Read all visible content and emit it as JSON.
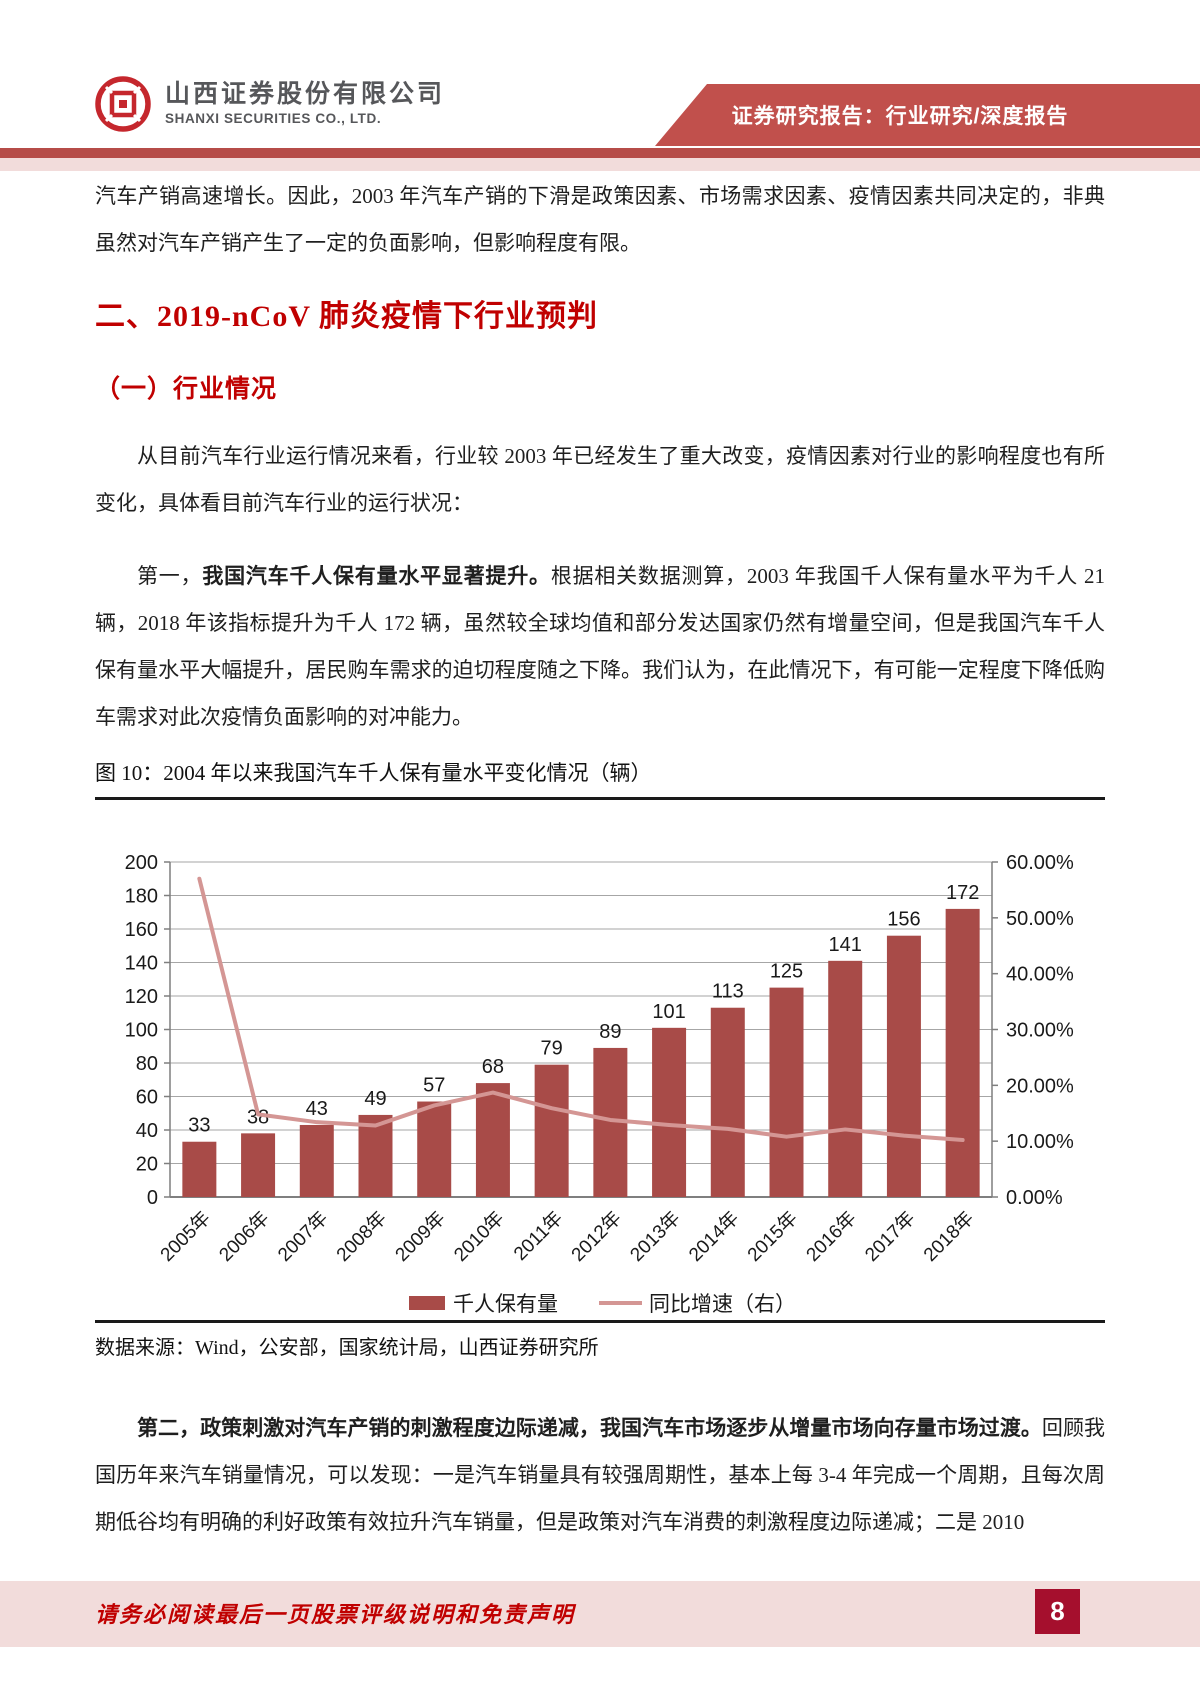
{
  "header": {
    "company_name_cn": "山西证券股份有限公司",
    "company_name_en": "SHANXI SECURITIES CO., LTD.",
    "banner": "证券研究报告：行业研究/深度报告",
    "logo": "shanxi-securities-emblem"
  },
  "content": {
    "p1": "汽车产销高速增长。因此，2003 年汽车产销的下滑是政策因素、市场需求因素、疫情因素共同决定的，非典虽然对汽车产销产生了一定的负面影响，但影响程度有限。",
    "h1": "二、2019-nCoV 肺炎疫情下行业预判",
    "h2": "（一）行业情况",
    "p2": "从目前汽车行业运行情况来看，行业较 2003 年已经发生了重大改变，疫情因素对行业的影响程度也有所变化，具体看目前汽车行业的运行状况：",
    "p3_prefix": "第一，",
    "p3_bold": "我国汽车千人保有量水平显著提升。",
    "p3_rest": "根据相关数据测算，2003 年我国千人保有量水平为千人 21 辆，2018 年该指标提升为千人 172 辆，虽然较全球均值和部分发达国家仍然有增量空间，但是我国汽车千人保有量水平大幅提升，居民购车需求的迫切程度随之下降。我们认为，在此情况下，有可能一定程度下降低购车需求对此次疫情负面影响的对冲能力。",
    "p4_bold": "第二，政策刺激对汽车产销的刺激程度边际递减，我国汽车市场逐步从增量市场向存量市场过渡。",
    "p4_rest": "回顾我国历年来汽车销量情况，可以发现：一是汽车销量具有较强周期性，基本上每 3-4 年完成一个周期，且每次周期低谷均有明确的利好政策有效拉升汽车销量，但是政策对汽车消费的刺激程度边际递减；二是 2010"
  },
  "figure": {
    "caption": "图 10：2004 年以来我国汽车千人保有量水平变化情况（辆）",
    "source": "数据来源：Wind，公安部，国家统计局，山西证券研究所"
  },
  "chart_data": {
    "type": "bar+line",
    "title": "2004 年以来我国汽车千人保有量水平变化情况（辆）",
    "categories": [
      "2005年",
      "2006年",
      "2007年",
      "2008年",
      "2009年",
      "2010年",
      "2011年",
      "2012年",
      "2013年",
      "2014年",
      "2015年",
      "2016年",
      "2017年",
      "2018年"
    ],
    "series": [
      {
        "name": "千人保有量",
        "type": "bar",
        "axis": "left",
        "color": "#a84b48",
        "values": [
          33,
          38,
          43,
          49,
          57,
          68,
          79,
          89,
          101,
          113,
          125,
          141,
          156,
          172
        ]
      },
      {
        "name": "同比增速（右）",
        "type": "line",
        "axis": "right",
        "color": "#d49694",
        "values": [
          57.0,
          14.8,
          13.4,
          12.8,
          16.4,
          18.7,
          15.9,
          13.8,
          12.9,
          12.2,
          10.8,
          12.1,
          11.0,
          10.2
        ]
      }
    ],
    "left_axis": {
      "min": 0,
      "max": 200,
      "step": 20
    },
    "right_axis": {
      "min": 0,
      "max": 60,
      "step": 10,
      "suffix": "%",
      "decimals": 2
    },
    "grid": true,
    "legend_position": "bottom",
    "bar_labels_shown": true
  },
  "footer": {
    "disclaimer": "请务必阅读最后一页股票评级说明和免责声明",
    "page_number": "8"
  },
  "colors": {
    "heading_red": "#c00000",
    "banner_red": "#c1504c",
    "rule_red": "#b64c48",
    "strip_pink": "#f2dcdb",
    "bar_red": "#a84b48",
    "line_pink": "#d49694",
    "badge_red": "#a50f2d",
    "gridline_gray": "#a6a6a6",
    "axis_gray": "#7f7f7f"
  }
}
